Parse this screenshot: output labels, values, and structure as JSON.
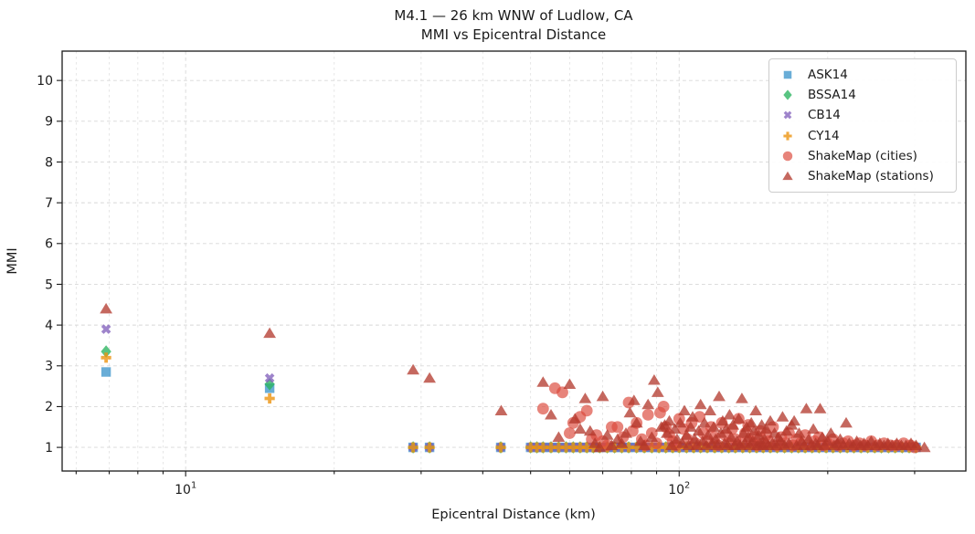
{
  "title": {
    "line1": "M4.1 — 26 km WNW of Ludlow, CA",
    "line2": "MMI vs Epicentral Distance"
  },
  "axes": {
    "xlabel": "Epicentral Distance (km)",
    "ylabel": "MMI",
    "x_scale": "log",
    "xlim": [
      5.62,
      381
    ],
    "ylim": [
      0.42,
      10.72
    ],
    "x_major_ticks": [
      {
        "value": 10,
        "base": "10",
        "exp": "1"
      },
      {
        "value": 100,
        "base": "10",
        "exp": "2"
      }
    ],
    "x_minor_ticks": [
      6,
      7,
      8,
      9,
      20,
      30,
      40,
      50,
      60,
      70,
      80,
      90,
      200,
      300
    ],
    "y_ticks": [
      1,
      2,
      3,
      4,
      5,
      6,
      7,
      8,
      9,
      10
    ],
    "grid": true,
    "grid_color": "#d8d8d8",
    "spine_color": "#1a1a1a"
  },
  "legend": {
    "position": "upper-right"
  },
  "chart_data": {
    "type": "scatter",
    "x_units": "km",
    "clamped_row": {
      "mmi": 1.0,
      "applies_to": [
        "ASK14",
        "BSSA14",
        "CB14",
        "CY14"
      ],
      "distances_km": [
        28.9,
        31.2,
        43.5,
        50,
        51.5,
        53,
        55,
        57,
        59,
        61,
        63,
        65,
        67,
        69,
        71.5,
        74,
        76.5,
        79,
        82,
        85,
        88,
        91,
        94,
        97,
        100,
        103.5,
        107,
        110.5,
        114,
        118,
        122,
        126,
        130,
        134.5,
        139,
        143.5,
        148,
        153,
        158,
        163.5,
        169,
        174.5,
        180,
        186,
        192,
        198.5,
        205,
        212,
        219,
        226,
        233.5,
        241,
        249,
        257,
        265.5,
        274,
        283,
        292.5,
        302
      ]
    },
    "series": [
      {
        "name": "ASK14",
        "marker": "square",
        "color": "#3f96cc",
        "include_clamped_row": true,
        "points": [
          [
            6.9,
            2.85
          ],
          [
            14.8,
            2.45
          ]
        ]
      },
      {
        "name": "BSSA14",
        "marker": "diamond",
        "color": "#2ab35f",
        "include_clamped_row": true,
        "points": [
          [
            6.9,
            3.35
          ],
          [
            14.8,
            2.55
          ]
        ]
      },
      {
        "name": "CB14",
        "marker": "x",
        "color": "#8361bc",
        "include_clamped_row": true,
        "points": [
          [
            6.9,
            3.9
          ],
          [
            14.8,
            2.7
          ]
        ]
      },
      {
        "name": "CY14",
        "marker": "plus",
        "color": "#ec9410",
        "include_clamped_row": true,
        "points": [
          [
            6.9,
            3.2
          ],
          [
            14.8,
            2.2
          ]
        ]
      },
      {
        "name": "ShakeMap (cities)",
        "marker": "circle",
        "color": "#dc4a3c",
        "include_clamped_row": false,
        "points": [
          [
            53,
            1.95
          ],
          [
            56,
            2.45
          ],
          [
            58,
            2.35
          ],
          [
            60,
            1.35
          ],
          [
            61,
            1.6
          ],
          [
            63,
            1.75
          ],
          [
            65,
            1.9
          ],
          [
            66.5,
            1.2
          ],
          [
            68,
            1.3
          ],
          [
            70,
            1.15
          ],
          [
            71.5,
            1.05
          ],
          [
            73,
            1.5
          ],
          [
            75,
            1.5
          ],
          [
            77,
            1.25
          ],
          [
            79,
            2.1
          ],
          [
            80.5,
            1.4
          ],
          [
            82,
            1.6
          ],
          [
            84,
            1.2
          ],
          [
            85.5,
            1.05
          ],
          [
            86.5,
            1.8
          ],
          [
            88,
            1.35
          ],
          [
            90,
            1.1
          ],
          [
            91.5,
            1.85
          ],
          [
            93,
            2.0
          ],
          [
            94,
            1.5
          ],
          [
            95.5,
            1.3
          ],
          [
            97,
            1.15
          ],
          [
            98.5,
            1.05
          ],
          [
            100,
            1.7
          ],
          [
            102,
            1.45
          ],
          [
            104,
            1.2
          ],
          [
            106,
            1.6
          ],
          [
            108,
            1.1
          ],
          [
            110,
            1.75
          ],
          [
            112,
            1.35
          ],
          [
            114,
            1.15
          ],
          [
            116,
            1.5
          ],
          [
            118,
            1.25
          ],
          [
            120,
            1.05
          ],
          [
            122,
            1.6
          ],
          [
            124,
            1.3
          ],
          [
            126,
            1.1
          ],
          [
            128,
            1.45
          ],
          [
            130,
            1.2
          ],
          [
            132,
            1.7
          ],
          [
            134,
            1.1
          ],
          [
            136,
            1.35
          ],
          [
            138,
            1.55
          ],
          [
            140,
            1.15
          ],
          [
            142,
            1.25
          ],
          [
            144,
            1.05
          ],
          [
            146,
            1.4
          ],
          [
            148,
            1.1
          ],
          [
            150,
            1.3
          ],
          [
            152,
            1.15
          ],
          [
            155,
            1.5
          ],
          [
            158,
            1.05
          ],
          [
            161,
            1.25
          ],
          [
            164,
            1.1
          ],
          [
            167,
            1.35
          ],
          [
            170,
            1.05
          ],
          [
            173,
            1.2
          ],
          [
            176,
            1.1
          ],
          [
            180,
            1.3
          ],
          [
            184,
            1.05
          ],
          [
            188,
            1.15
          ],
          [
            192,
            1.25
          ],
          [
            196,
            1.05
          ],
          [
            200,
            1.1
          ],
          [
            205,
            1.2
          ],
          [
            210,
            1.05
          ],
          [
            215,
            1.1
          ],
          [
            220,
            1.15
          ],
          [
            226,
            1.05
          ],
          [
            232,
            1.1
          ],
          [
            238,
            1.05
          ],
          [
            245,
            1.15
          ],
          [
            252,
            1.05
          ],
          [
            260,
            1.1
          ],
          [
            268,
            1.05
          ],
          [
            276,
            1.05
          ],
          [
            285,
            1.1
          ],
          [
            294,
            1.05
          ],
          [
            300,
            1.0
          ]
        ]
      },
      {
        "name": "ShakeMap (stations)",
        "marker": "triangle",
        "color": "#b1352a",
        "include_clamped_row": false,
        "points": [
          [
            6.9,
            4.4
          ],
          [
            14.8,
            3.8
          ],
          [
            28.9,
            2.9
          ],
          [
            31.2,
            2.7
          ],
          [
            43.6,
            1.9
          ],
          [
            53,
            2.6
          ],
          [
            55,
            1.8
          ],
          [
            57,
            1.25
          ],
          [
            60,
            2.55
          ],
          [
            61.5,
            1.7
          ],
          [
            63,
            1.45
          ],
          [
            64.5,
            2.2
          ],
          [
            66,
            1.4
          ],
          [
            67.5,
            1.1
          ],
          [
            69,
            1.0
          ],
          [
            70,
            2.25
          ],
          [
            71.5,
            1.3
          ],
          [
            73,
            1.05
          ],
          [
            75,
            1.2
          ],
          [
            76.5,
            1.1
          ],
          [
            78,
            1.35
          ],
          [
            79.5,
            1.85
          ],
          [
            81,
            2.15
          ],
          [
            82,
            1.6
          ],
          [
            83.5,
            1.15
          ],
          [
            85,
            1.05
          ],
          [
            86.5,
            2.05
          ],
          [
            88,
            1.25
          ],
          [
            89,
            2.65
          ],
          [
            90.5,
            2.35
          ],
          [
            92,
            1.5
          ],
          [
            93.5,
            1.55
          ],
          [
            94.5,
            1.35
          ],
          [
            95.5,
            1.65
          ],
          [
            96.5,
            1.05
          ],
          [
            98,
            1.45
          ],
          [
            99,
            1.2
          ],
          [
            100.5,
            1.6
          ],
          [
            101.5,
            1.1
          ],
          [
            102.5,
            1.9
          ],
          [
            103.5,
            1.3
          ],
          [
            104.5,
            1.05
          ],
          [
            105.5,
            1.5
          ],
          [
            106.5,
            1.75
          ],
          [
            107.5,
            1.2
          ],
          [
            108.5,
            1.05
          ],
          [
            109.5,
            1.4
          ],
          [
            110.5,
            2.05
          ],
          [
            111.5,
            1.15
          ],
          [
            112.5,
            1.6
          ],
          [
            113.5,
            1.05
          ],
          [
            114.5,
            1.3
          ],
          [
            115.5,
            1.9
          ],
          [
            116.5,
            1.1
          ],
          [
            117.5,
            1.5
          ],
          [
            118.5,
            1.2
          ],
          [
            119.5,
            1.05
          ],
          [
            120.5,
            2.25
          ],
          [
            121.5,
            1.35
          ],
          [
            122.5,
            1.65
          ],
          [
            123.5,
            1.1
          ],
          [
            124.5,
            1.45
          ],
          [
            125.5,
            1.05
          ],
          [
            126.5,
            1.8
          ],
          [
            127.5,
            1.25
          ],
          [
            128.5,
            1.55
          ],
          [
            129.5,
            1.05
          ],
          [
            131,
            1.15
          ],
          [
            132,
            1.7
          ],
          [
            133,
            1.05
          ],
          [
            134,
            2.2
          ],
          [
            135,
            1.35
          ],
          [
            136,
            1.1
          ],
          [
            137,
            1.5
          ],
          [
            138,
            1.25
          ],
          [
            139,
            1.05
          ],
          [
            140,
            1.6
          ],
          [
            141,
            1.15
          ],
          [
            142,
            1.4
          ],
          [
            143,
            1.9
          ],
          [
            144,
            1.05
          ],
          [
            145,
            1.3
          ],
          [
            146,
            1.1
          ],
          [
            147,
            1.55
          ],
          [
            148,
            1.05
          ],
          [
            149,
            1.2
          ],
          [
            150,
            1.45
          ],
          [
            151.5,
            1.05
          ],
          [
            153,
            1.65
          ],
          [
            154.5,
            1.1
          ],
          [
            156,
            1.35
          ],
          [
            157.5,
            1.05
          ],
          [
            159,
            1.25
          ],
          [
            160.5,
            1.15
          ],
          [
            162,
            1.75
          ],
          [
            163.5,
            1.05
          ],
          [
            165,
            1.4
          ],
          [
            167,
            1.1
          ],
          [
            169,
            1.55
          ],
          [
            171,
            1.65
          ],
          [
            173,
            1.05
          ],
          [
            175,
            1.35
          ],
          [
            177,
            1.15
          ],
          [
            179,
            1.05
          ],
          [
            181,
            1.95
          ],
          [
            183,
            1.2
          ],
          [
            185,
            1.05
          ],
          [
            187,
            1.45
          ],
          [
            189,
            1.1
          ],
          [
            191,
            1.05
          ],
          [
            193,
            1.95
          ],
          [
            195,
            1.25
          ],
          [
            197,
            1.05
          ],
          [
            200,
            1.15
          ],
          [
            203,
            1.35
          ],
          [
            206,
            1.05
          ],
          [
            209,
            1.1
          ],
          [
            212,
            1.2
          ],
          [
            215,
            1.05
          ],
          [
            218,
            1.6
          ],
          [
            221,
            1.1
          ],
          [
            225,
            1.05
          ],
          [
            229,
            1.15
          ],
          [
            233,
            1.05
          ],
          [
            237,
            1.1
          ],
          [
            241,
            1.05
          ],
          [
            245,
            1.15
          ],
          [
            250,
            1.05
          ],
          [
            255,
            1.1
          ],
          [
            260,
            1.05
          ],
          [
            265,
            1.1
          ],
          [
            270,
            1.05
          ],
          [
            276,
            1.1
          ],
          [
            282,
            1.05
          ],
          [
            288,
            1.05
          ],
          [
            295,
            1.1
          ],
          [
            302,
            1.05
          ],
          [
            314,
            1.0
          ]
        ]
      }
    ]
  }
}
